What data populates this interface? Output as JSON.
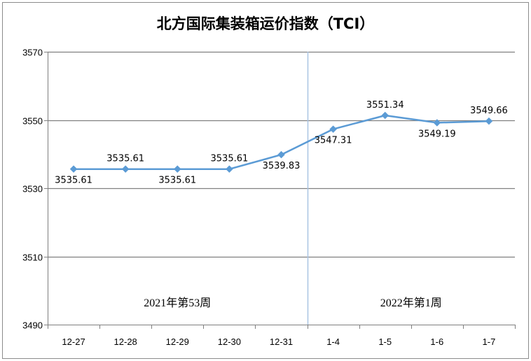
{
  "chart_data": {
    "type": "line",
    "title": "北方国际集装箱运价指数（TCI）",
    "categories": [
      "12-27",
      "12-28",
      "12-29",
      "12-30",
      "12-31",
      "1-4",
      "1-5",
      "1-6",
      "1-7"
    ],
    "series": [
      {
        "values": [
          3535.61,
          3535.61,
          3535.61,
          3535.61,
          3539.83,
          3547.31,
          3551.34,
          3549.19,
          3549.66
        ],
        "labels": [
          "3535.61",
          "3535.61",
          "3535.61",
          "3535.61",
          "3539.83",
          "3547.31",
          "3551.34",
          "3549.19",
          "3549.66"
        ],
        "label_positions": [
          "below",
          "above",
          "below",
          "above",
          "below",
          "below",
          "above",
          "below",
          "above"
        ]
      }
    ],
    "ylim": [
      3490,
      3570
    ],
    "yticks": [
      3490,
      3510,
      3530,
      3550,
      3570
    ],
    "ytick_labels": [
      "3490",
      "3510",
      "3530",
      "3550",
      "3570"
    ],
    "grid": true,
    "divider_after_category": "12-31",
    "annotations": [
      {
        "text": "2021年第53周",
        "group": "left"
      },
      {
        "text": "2022年第1周",
        "group": "right"
      }
    ],
    "colors": {
      "line": "#5B9BD5",
      "marker": "#5B9BD5",
      "divider": "#A9C4E3",
      "grid": "#808080",
      "border": "#808080"
    }
  }
}
